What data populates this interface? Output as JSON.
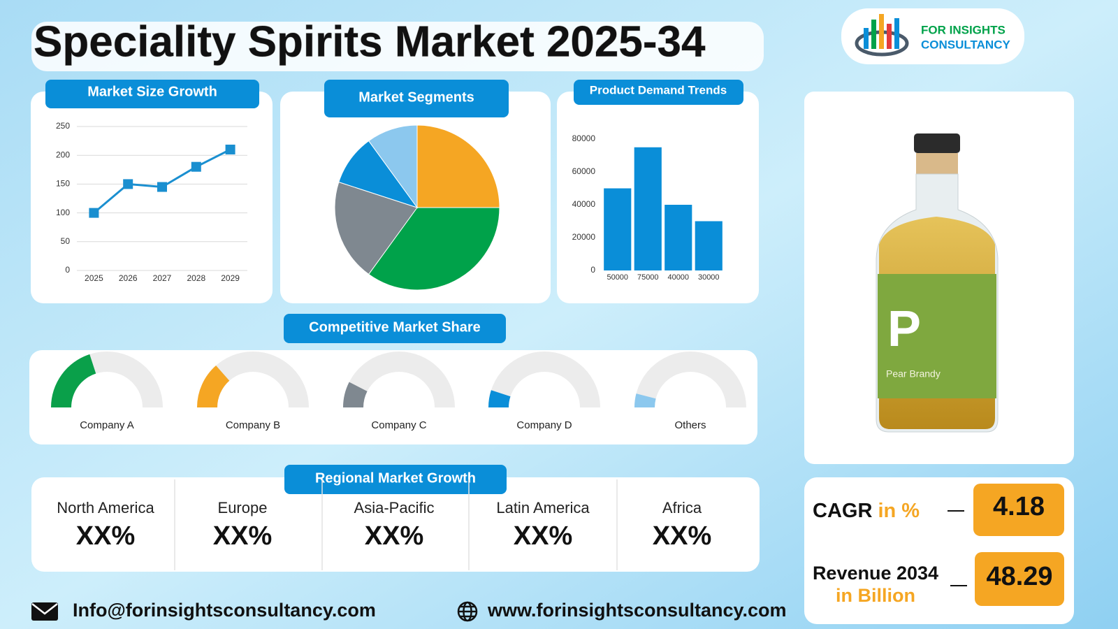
{
  "title": "Speciality Spirits Market 2025-34",
  "logo": {
    "line1": "FOR INSIGHTS",
    "line2": "CONSULTANCY"
  },
  "chart_data": [
    {
      "type": "line",
      "title": "Market Size Growth",
      "categories": [
        "2025",
        "2026",
        "2027",
        "2028",
        "2029"
      ],
      "values": [
        100,
        150,
        145,
        180,
        210
      ],
      "color": "#1a8fd0",
      "ylim": [
        0,
        250
      ],
      "yticks": [
        0,
        50,
        100,
        150,
        200,
        250
      ],
      "grid": true
    },
    {
      "type": "pie",
      "title": "Market Segments",
      "values": [
        25,
        35,
        20,
        10,
        10
      ],
      "colors": [
        "#f5a623",
        "#00a24a",
        "#7f8890",
        "#0a8ed8",
        "#8cc8ee"
      ]
    },
    {
      "type": "bar",
      "title": "Product Demand Trends",
      "categories": [
        "50000",
        "75000",
        "40000",
        "30000"
      ],
      "values": [
        50000,
        75000,
        40000,
        30000
      ],
      "color": "#0a8ed8",
      "ylim": [
        0,
        80000
      ],
      "yticks": [
        0,
        20000,
        40000,
        60000,
        80000
      ],
      "grid": false
    },
    {
      "type": "gauge",
      "title": "Competitive Market Share",
      "categories": [
        "Company A",
        "Company B",
        "Company C",
        "Company D",
        "Others"
      ],
      "values": [
        40,
        27,
        15,
        10,
        8
      ],
      "colors": [
        "#0aa04a",
        "#f5a623",
        "#7f8890",
        "#0a8ed8",
        "#8cc8ee"
      ],
      "ylim": [
        0,
        100
      ]
    }
  ],
  "regional": {
    "title": "Regional Market Growth",
    "regions": [
      {
        "name": "North America",
        "value": "XX%"
      },
      {
        "name": "Europe",
        "value": "XX%"
      },
      {
        "name": "Asia-Pacific",
        "value": "XX%"
      },
      {
        "name": "Latin America",
        "value": "XX%"
      },
      {
        "name": "Africa",
        "value": "XX%"
      }
    ]
  },
  "product": {
    "letter": "P",
    "name": "Pear Brandy"
  },
  "stats": {
    "cagr_label": "CAGR",
    "cagr_unit": "in %",
    "cagr": 4.18,
    "revenue_label": "Revenue 2034",
    "revenue_unit": "in Billion",
    "revenue": 48.29
  },
  "footer": {
    "email": "Info@forinsightsconsultancy.com",
    "website": "www.forinsightsconsultancy.com"
  }
}
